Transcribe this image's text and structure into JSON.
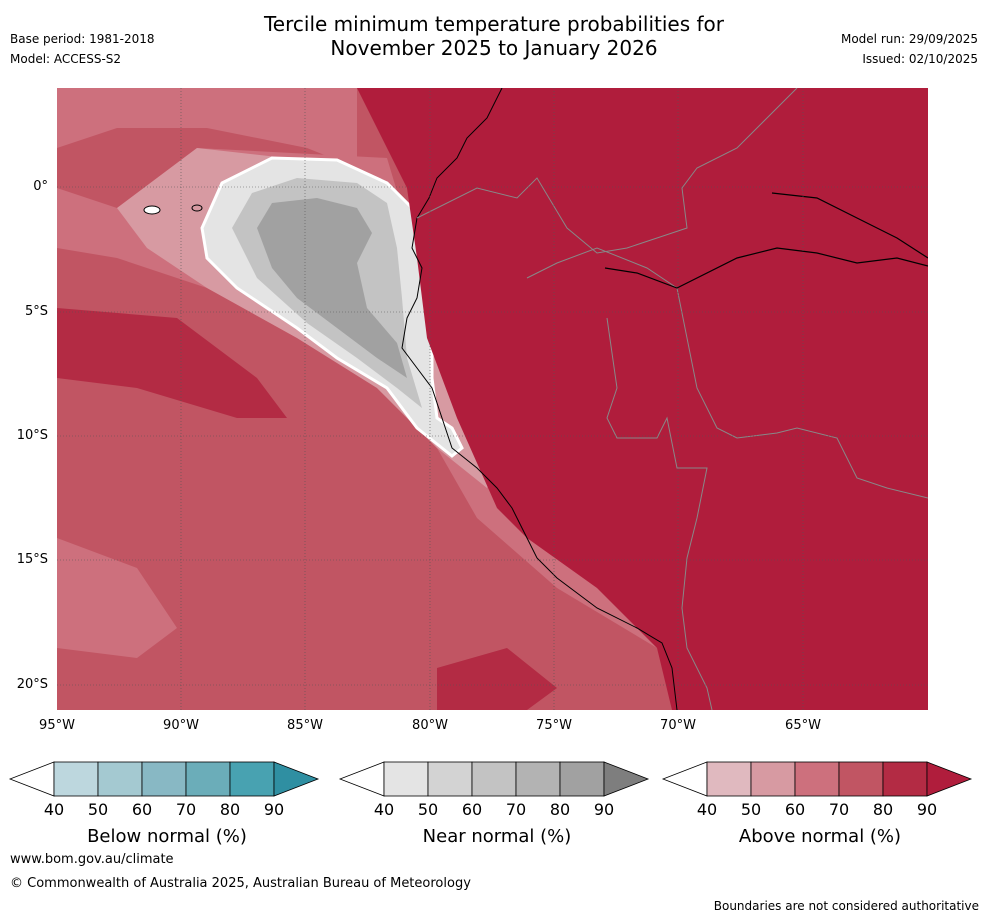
{
  "title": {
    "line1": "Tercile minimum temperature probabilities for",
    "line2": "November 2025 to January 2026"
  },
  "meta_left": {
    "base_period": "Base period: 1981-2018",
    "model": "Model: ACCESS-S2"
  },
  "meta_right": {
    "model_run": "Model run: 29/09/2025",
    "issued": "Issued: 02/10/2025"
  },
  "map": {
    "lat_labels": [
      "0°",
      "5°S",
      "10°S",
      "15°S",
      "20°S"
    ],
    "lon_labels": [
      "95°W",
      "90°W",
      "85°W",
      "80°W",
      "75°W",
      "70°W",
      "65°W"
    ]
  },
  "colorbars": [
    {
      "label": "Below normal (%)",
      "ticks": [
        "40",
        "50",
        "60",
        "70",
        "80",
        "90"
      ],
      "colors": [
        "#ffffff",
        "#bdd7de",
        "#a4c9d1",
        "#88b8c4",
        "#6badb9",
        "#48a2b1",
        "#2f8fa2"
      ]
    },
    {
      "label": "Near normal (%)",
      "ticks": [
        "40",
        "50",
        "60",
        "70",
        "80",
        "90"
      ],
      "colors": [
        "#ffffff",
        "#e4e4e4",
        "#d3d3d3",
        "#c3c3c3",
        "#b3b3b3",
        "#a1a1a1",
        "#7e7e7e"
      ]
    },
    {
      "label": "Above normal (%)",
      "ticks": [
        "40",
        "50",
        "60",
        "70",
        "80",
        "90"
      ],
      "colors": [
        "#ffffff",
        "#e0b9bf",
        "#d79aa2",
        "#cd707d",
        "#c15563",
        "#b32b44",
        "#b01d3c"
      ]
    }
  ],
  "footer": {
    "website": "www.bom.gov.au/climate",
    "copyright": "© Commonwealth of Australia 2025, Australian Bureau of Meteorology",
    "disclaimer": "Boundaries are not considered authoritative"
  }
}
